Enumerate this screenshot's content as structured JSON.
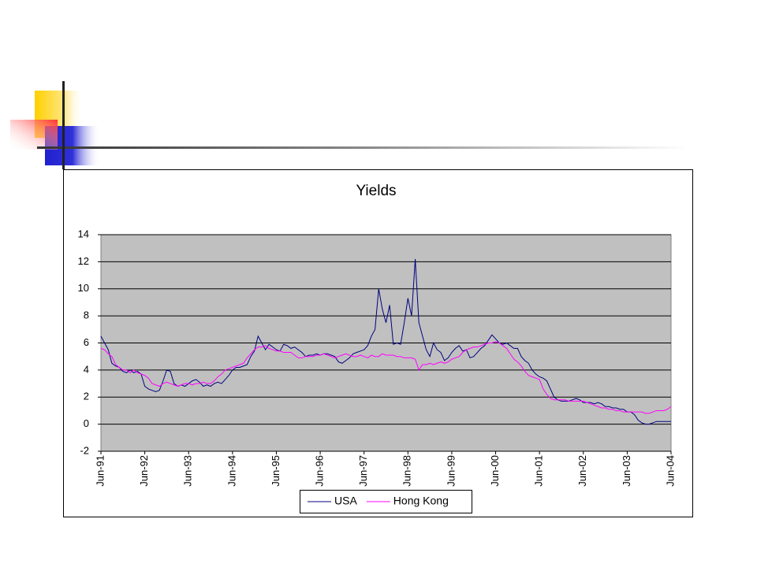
{
  "chart_data": {
    "type": "line",
    "title": "Yields",
    "categories": [
      "Jun-91",
      null,
      null,
      null,
      null,
      null,
      null,
      null,
      null,
      null,
      null,
      null,
      "Jun-92",
      null,
      null,
      null,
      null,
      null,
      null,
      null,
      null,
      null,
      null,
      null,
      "Jun-93",
      null,
      null,
      null,
      null,
      null,
      null,
      null,
      null,
      null,
      null,
      null,
      "Jun-94",
      null,
      null,
      null,
      null,
      null,
      null,
      null,
      null,
      null,
      null,
      null,
      "Jun-95",
      null,
      null,
      null,
      null,
      null,
      null,
      null,
      null,
      null,
      null,
      null,
      "Jun-96",
      null,
      null,
      null,
      null,
      null,
      null,
      null,
      null,
      null,
      null,
      null,
      "Jun-97",
      null,
      null,
      null,
      null,
      null,
      null,
      null,
      null,
      null,
      null,
      null,
      "Jun-98",
      null,
      null,
      null,
      null,
      null,
      null,
      null,
      null,
      null,
      null,
      null,
      "Jun-99",
      null,
      null,
      null,
      null,
      null,
      null,
      null,
      null,
      null,
      null,
      null,
      "Jun-00",
      null,
      null,
      null,
      null,
      null,
      null,
      null,
      null,
      null,
      null,
      null,
      "Jun-01",
      null,
      null,
      null,
      null,
      null,
      null,
      null,
      null,
      null,
      null,
      null,
      "Jun-02",
      null,
      null,
      null,
      null,
      null,
      null,
      null,
      null,
      null,
      null,
      null,
      "Jun-03",
      null,
      null,
      null,
      null,
      null,
      null,
      null,
      null,
      null,
      null,
      null,
      "Jun-04"
    ],
    "series": [
      {
        "name": "USA",
        "color": "#000080",
        "values": [
          6.5,
          6.0,
          5.5,
          4.5,
          4.3,
          4.2,
          3.9,
          3.8,
          4.0,
          3.8,
          3.9,
          3.7,
          2.8,
          2.6,
          2.5,
          2.4,
          2.5,
          3.2,
          4.0,
          3.9,
          3.0,
          2.8,
          2.9,
          2.8,
          3.0,
          3.2,
          3.3,
          3.1,
          2.8,
          2.9,
          2.8,
          3.0,
          3.1,
          3.0,
          3.3,
          3.6,
          4.0,
          4.2,
          4.2,
          4.3,
          4.4,
          5.0,
          5.4,
          6.5,
          6.0,
          5.5,
          5.9,
          5.7,
          5.5,
          5.4,
          5.9,
          5.8,
          5.6,
          5.7,
          5.5,
          5.3,
          5.0,
          5.1,
          5.1,
          5.2,
          5.1,
          5.2,
          5.2,
          5.1,
          5.0,
          4.6,
          4.5,
          4.7,
          4.9,
          5.2,
          5.3,
          5.4,
          5.5,
          5.8,
          6.5,
          7.0,
          10.0,
          8.5,
          7.5,
          8.8,
          5.9,
          6.0,
          5.9,
          7.5,
          9.3,
          8.0,
          12.2,
          7.5,
          6.5,
          5.5,
          5.0,
          6.0,
          5.5,
          5.3,
          4.7,
          4.9,
          5.3,
          5.6,
          5.8,
          5.4,
          5.5,
          4.9,
          5.0,
          5.3,
          5.6,
          5.8,
          6.2,
          6.6,
          6.3,
          6.0,
          5.9,
          6.0,
          5.8,
          5.6,
          5.6,
          5.0,
          4.7,
          4.5,
          4.0,
          3.7,
          3.5,
          3.4,
          3.2,
          2.6,
          2.0,
          1.8,
          1.7,
          1.7,
          1.7,
          1.8,
          1.9,
          1.8,
          1.6,
          1.6,
          1.6,
          1.5,
          1.6,
          1.5,
          1.3,
          1.3,
          1.2,
          1.2,
          1.1,
          1.1,
          0.9,
          0.9,
          0.7,
          0.3,
          0.1,
          0.0,
          0.0,
          0.1,
          0.2,
          0.2,
          0.2,
          0.2,
          0.2
        ]
      },
      {
        "name": "Hong Kong",
        "color": "#ff00ff",
        "values": [
          5.6,
          5.5,
          5.2,
          5.0,
          4.4,
          4.2,
          4.0,
          4.0,
          3.8,
          4.0,
          3.8,
          3.7,
          3.6,
          3.4,
          3.0,
          2.9,
          2.8,
          3.0,
          3.1,
          3.0,
          2.9,
          2.8,
          2.9,
          3.0,
          3.0,
          2.9,
          3.0,
          3.0,
          3.1,
          3.0,
          3.0,
          3.2,
          3.5,
          3.7,
          4.0,
          4.1,
          4.2,
          4.3,
          4.4,
          4.5,
          4.9,
          5.2,
          5.5,
          5.7,
          5.7,
          5.8,
          5.6,
          5.5,
          5.4,
          5.4,
          5.3,
          5.3,
          5.3,
          5.1,
          4.9,
          4.9,
          5.0,
          5.0,
          5.0,
          5.1,
          5.1,
          5.2,
          5.1,
          5.0,
          4.9,
          5.0,
          5.1,
          5.2,
          5.1,
          5.0,
          5.0,
          5.1,
          5.0,
          4.9,
          5.1,
          5.0,
          5.0,
          5.2,
          5.1,
          5.1,
          5.1,
          5.0,
          5.0,
          4.9,
          4.9,
          4.9,
          4.8,
          4.0,
          4.4,
          4.4,
          4.5,
          4.4,
          4.5,
          4.6,
          4.5,
          4.6,
          4.8,
          4.9,
          5.0,
          5.3,
          5.5,
          5.6,
          5.7,
          5.7,
          5.8,
          5.9,
          6.0,
          6.0,
          6.1,
          6.0,
          5.8,
          5.6,
          5.2,
          4.8,
          4.6,
          4.3,
          3.9,
          3.6,
          3.5,
          3.4,
          3.3,
          2.6,
          2.2,
          1.9,
          1.8,
          1.8,
          1.8,
          1.8,
          1.7,
          1.7,
          1.7,
          1.7,
          1.7,
          1.6,
          1.5,
          1.4,
          1.3,
          1.2,
          1.2,
          1.1,
          1.1,
          1.0,
          1.0,
          0.9,
          0.9,
          0.9,
          0.9,
          0.9,
          0.9,
          0.8,
          0.8,
          0.9,
          1.0,
          1.0,
          1.0,
          1.1,
          1.3
        ]
      }
    ],
    "ylim": [
      -2,
      14
    ],
    "yticks": [
      -2,
      0,
      2,
      4,
      6,
      8,
      10,
      12,
      14
    ],
    "grid": true,
    "legend": "bottom"
  }
}
